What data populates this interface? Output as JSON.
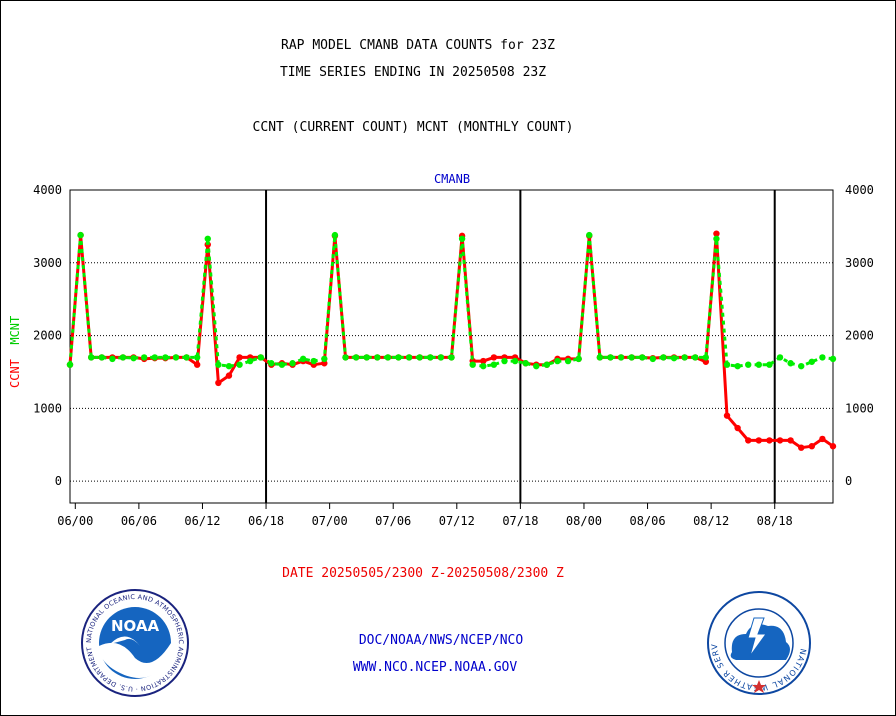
{
  "header": {
    "title_line1": "RAP MODEL CMANB DATA COUNTS for 23Z",
    "title_line2": "TIME SERIES ENDING IN 20250508 23Z",
    "subtitle": "CCNT (CURRENT COUNT) MCNT (MONTHLY COUNT)"
  },
  "footer": {
    "date_range": "DATE 20250505/2300 Z-20250508/2300 Z",
    "org_line": "DOC/NOAA/NWS/NCEP/NCO",
    "website": "WWW.NCO.NCEP.NOAA.GOV"
  },
  "logos": {
    "noaa_text": "NOAA",
    "noaa_ring": "NATIONAL OCEANIC AND ATMOSPHERIC ADMINISTRATION · U.S. DEPARTMENT OF COMMERCE",
    "nws_ring": "NATIONAL WEATHER SERVICE"
  },
  "colors": {
    "ccnt": "#ff0000",
    "mcnt": "#00ee00",
    "text_blue": "#0000cc",
    "date_red": "#ee0000"
  },
  "chart_data": {
    "type": "line",
    "title": "CMANB",
    "ylabel_left_ccnt": "CCNT",
    "ylabel_left_mcnt": "MCNT",
    "ylim": [
      -300,
      4000
    ],
    "y_ticks": [
      0,
      1000,
      2000,
      3000,
      4000
    ],
    "y_tick_labels": [
      "0",
      "1000",
      "2000",
      "3000",
      "4000"
    ],
    "x_tick_labels": [
      "06/00",
      "06/06",
      "06/12",
      "06/18",
      "07/00",
      "07/06",
      "07/12",
      "07/18",
      "08/00",
      "08/06",
      "08/12",
      "08/18"
    ],
    "x_tick_hours": [
      0,
      6,
      12,
      18,
      24,
      30,
      36,
      42,
      48,
      54,
      60,
      66
    ],
    "day_boundaries": [
      18,
      42,
      66
    ],
    "x_start_hour": -0.5,
    "x_end_hour": 71.5,
    "grid": true,
    "series": [
      {
        "name": "CCNT",
        "color": "#ff0000",
        "x": [
          -0.5,
          0.5,
          1.5,
          2.5,
          3.5,
          4.5,
          5.5,
          6.5,
          7.5,
          8.5,
          9.5,
          10.5,
          11.5,
          12.5,
          13.5,
          14.5,
          15.5,
          16.5,
          17.5,
          18.5,
          19.5,
          20.5,
          21.5,
          22.5,
          23.5,
          24.5,
          25.5,
          26.5,
          27.5,
          28.5,
          29.5,
          30.5,
          31.5,
          32.5,
          33.5,
          34.5,
          35.5,
          36.5,
          37.5,
          38.5,
          39.5,
          40.5,
          41.5,
          42.5,
          43.5,
          44.5,
          45.5,
          46.5,
          47.5,
          48.5,
          49.5,
          50.5,
          51.5,
          52.5,
          53.5,
          54.5,
          55.5,
          56.5,
          57.5,
          58.5,
          59.5,
          60.5,
          61.5,
          62.5,
          63.5,
          64.5,
          65.5,
          66.5,
          67.5,
          68.5,
          69.5,
          70.5,
          71.5
        ],
        "values": [
          1600,
          3380,
          1700,
          1700,
          1700,
          1700,
          1700,
          1680,
          1690,
          1690,
          1700,
          1700,
          1600,
          3250,
          1350,
          1450,
          1700,
          1700,
          1700,
          1600,
          1620,
          1600,
          1650,
          1600,
          1620,
          3370,
          1700,
          1700,
          1700,
          1700,
          1700,
          1700,
          1700,
          1700,
          1700,
          1700,
          1700,
          3370,
          1650,
          1650,
          1700,
          1700,
          1700,
          1620,
          1600,
          1600,
          1680,
          1680,
          1680,
          3370,
          1700,
          1700,
          1700,
          1700,
          1700,
          1690,
          1700,
          1700,
          1700,
          1700,
          1640,
          3400,
          900,
          730,
          560,
          560,
          560,
          560,
          560,
          460,
          480,
          580,
          480
        ]
      },
      {
        "name": "MCNT",
        "color": "#00ee00",
        "x": [
          -0.5,
          0.5,
          1.5,
          2.5,
          3.5,
          4.5,
          5.5,
          6.5,
          7.5,
          8.5,
          9.5,
          10.5,
          11.5,
          12.5,
          13.5,
          14.5,
          15.5,
          16.5,
          17.5,
          18.5,
          19.5,
          20.5,
          21.5,
          22.5,
          23.5,
          24.5,
          25.5,
          26.5,
          27.5,
          28.5,
          29.5,
          30.5,
          31.5,
          32.5,
          33.5,
          34.5,
          35.5,
          36.5,
          37.5,
          38.5,
          39.5,
          40.5,
          41.5,
          42.5,
          43.5,
          44.5,
          45.5,
          46.5,
          47.5,
          48.5,
          49.5,
          50.5,
          51.5,
          52.5,
          53.5,
          54.5,
          55.5,
          56.5,
          57.5,
          58.5,
          59.5,
          60.5,
          61.5,
          62.5,
          63.5,
          64.5,
          65.5,
          66.5,
          67.5,
          68.5,
          69.5,
          70.5,
          71.5
        ],
        "values": [
          1600,
          3380,
          1700,
          1700,
          1680,
          1700,
          1690,
          1700,
          1700,
          1700,
          1700,
          1700,
          1700,
          3330,
          1600,
          1580,
          1600,
          1650,
          1700,
          1620,
          1600,
          1620,
          1680,
          1650,
          1680,
          3380,
          1700,
          1700,
          1700,
          1700,
          1700,
          1700,
          1700,
          1700,
          1700,
          1700,
          1700,
          3330,
          1600,
          1580,
          1600,
          1650,
          1650,
          1620,
          1580,
          1600,
          1650,
          1650,
          1680,
          3380,
          1700,
          1700,
          1700,
          1700,
          1700,
          1680,
          1700,
          1690,
          1700,
          1700,
          1700,
          3330,
          1600,
          1580,
          1600,
          1600,
          1600,
          1700,
          1620,
          1580,
          1640,
          1700,
          1680
        ]
      }
    ]
  }
}
